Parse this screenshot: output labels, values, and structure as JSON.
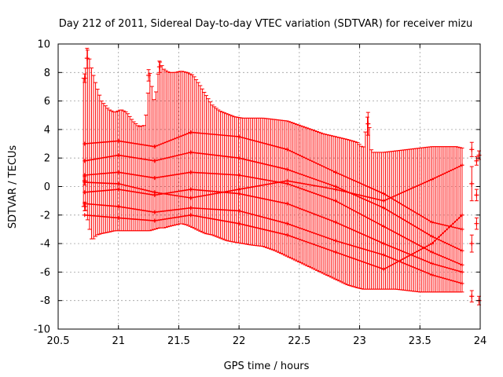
{
  "chart_data": {
    "type": "scatter",
    "title": "Day 212 of 2011, Sidereal Day-to-day VTEC variation (SDTVAR) for receiver mizu",
    "xlabel": "GPS time / hours",
    "ylabel": "SDTVAR / TECUs",
    "xlim": [
      20.5,
      24
    ],
    "ylim": [
      -10,
      10
    ],
    "xticks": [
      "20.5",
      "21",
      "21.5",
      "22",
      "22.5",
      "23",
      "23.5",
      "24"
    ],
    "yticks": [
      "-10",
      "-8",
      "-6",
      "-4",
      "-2",
      "0",
      "2",
      "4",
      "6",
      "8",
      "10"
    ],
    "grid": true,
    "series_color": "#ff0000",
    "envelope_upper": [
      [
        20.72,
        7.6
      ],
      [
        20.74,
        9.7
      ],
      [
        20.78,
        8.2
      ],
      [
        20.82,
        7.0
      ],
      [
        20.86,
        6.0
      ],
      [
        20.92,
        5.4
      ],
      [
        20.97,
        5.2
      ],
      [
        21.02,
        5.4
      ],
      [
        21.07,
        5.2
      ],
      [
        21.12,
        4.6
      ],
      [
        21.17,
        4.2
      ],
      [
        21.22,
        4.3
      ],
      [
        21.26,
        8.0
      ],
      [
        21.3,
        5.8
      ],
      [
        21.34,
        8.8
      ],
      [
        21.38,
        8.2
      ],
      [
        21.42,
        8.0
      ],
      [
        21.47,
        8.0
      ],
      [
        21.52,
        8.1
      ],
      [
        21.57,
        8.0
      ],
      [
        21.62,
        7.8
      ],
      [
        21.67,
        7.2
      ],
      [
        21.72,
        6.5
      ],
      [
        21.78,
        5.7
      ],
      [
        21.84,
        5.3
      ],
      [
        21.9,
        5.1
      ],
      [
        21.96,
        4.9
      ],
      [
        22.03,
        4.8
      ],
      [
        22.1,
        4.8
      ],
      [
        22.2,
        4.8
      ],
      [
        22.3,
        4.7
      ],
      [
        22.4,
        4.6
      ],
      [
        22.5,
        4.3
      ],
      [
        22.6,
        4.0
      ],
      [
        22.7,
        3.7
      ],
      [
        22.8,
        3.5
      ],
      [
        22.9,
        3.3
      ],
      [
        22.98,
        3.1
      ],
      [
        23.03,
        2.7
      ],
      [
        23.07,
        5.2
      ],
      [
        23.1,
        2.4
      ],
      [
        23.2,
        2.4
      ],
      [
        23.3,
        2.5
      ],
      [
        23.4,
        2.6
      ],
      [
        23.5,
        2.7
      ],
      [
        23.6,
        2.8
      ],
      [
        23.7,
        2.8
      ],
      [
        23.8,
        2.8
      ],
      [
        23.85,
        2.7
      ]
    ],
    "envelope_lower": [
      [
        20.72,
        -1.4
      ],
      [
        20.74,
        -2.2
      ],
      [
        20.78,
        -3.8
      ],
      [
        20.82,
        -3.4
      ],
      [
        20.86,
        -3.3
      ],
      [
        20.92,
        -3.2
      ],
      [
        20.97,
        -3.1
      ],
      [
        21.02,
        -3.1
      ],
      [
        21.07,
        -3.1
      ],
      [
        21.12,
        -3.1
      ],
      [
        21.17,
        -3.1
      ],
      [
        21.22,
        -3.1
      ],
      [
        21.26,
        -3.1
      ],
      [
        21.3,
        -3.0
      ],
      [
        21.34,
        -2.9
      ],
      [
        21.38,
        -2.9
      ],
      [
        21.42,
        -2.8
      ],
      [
        21.47,
        -2.7
      ],
      [
        21.52,
        -2.6
      ],
      [
        21.57,
        -2.7
      ],
      [
        21.62,
        -2.9
      ],
      [
        21.67,
        -3.1
      ],
      [
        21.72,
        -3.3
      ],
      [
        21.78,
        -3.4
      ],
      [
        21.84,
        -3.6
      ],
      [
        21.9,
        -3.8
      ],
      [
        21.96,
        -3.9
      ],
      [
        22.03,
        -4.0
      ],
      [
        22.1,
        -4.1
      ],
      [
        22.2,
        -4.2
      ],
      [
        22.3,
        -4.5
      ],
      [
        22.4,
        -4.9
      ],
      [
        22.5,
        -5.3
      ],
      [
        22.6,
        -5.7
      ],
      [
        22.7,
        -6.1
      ],
      [
        22.8,
        -6.5
      ],
      [
        22.9,
        -6.9
      ],
      [
        22.98,
        -7.1
      ],
      [
        23.03,
        -7.2
      ],
      [
        23.07,
        -7.2
      ],
      [
        23.1,
        -7.2
      ],
      [
        23.2,
        -7.2
      ],
      [
        23.3,
        -7.2
      ],
      [
        23.4,
        -7.3
      ],
      [
        23.5,
        -7.4
      ],
      [
        23.6,
        -7.4
      ],
      [
        23.7,
        -7.4
      ],
      [
        23.8,
        -7.4
      ],
      [
        23.85,
        -7.4
      ]
    ],
    "bar_x_start": 20.71,
    "bar_x_end": 23.85,
    "bar_x_step": 0.0167,
    "tracks": [
      [
        [
          20.72,
          3.0
        ],
        [
          21.0,
          3.2
        ],
        [
          21.3,
          2.8
        ],
        [
          21.6,
          3.8
        ],
        [
          22.0,
          3.5
        ],
        [
          22.4,
          2.6
        ],
        [
          22.8,
          1.0
        ],
        [
          23.2,
          -0.5
        ],
        [
          23.6,
          -2.5
        ],
        [
          23.85,
          -3.0
        ]
      ],
      [
        [
          20.72,
          1.8
        ],
        [
          21.0,
          2.2
        ],
        [
          21.3,
          1.8
        ],
        [
          21.6,
          2.4
        ],
        [
          22.0,
          2.0
        ],
        [
          22.4,
          1.2
        ],
        [
          22.8,
          0.0
        ],
        [
          23.2,
          -1.5
        ],
        [
          23.6,
          -3.5
        ],
        [
          23.85,
          -4.5
        ]
      ],
      [
        [
          20.72,
          0.8
        ],
        [
          21.0,
          1.0
        ],
        [
          21.3,
          0.6
        ],
        [
          21.6,
          1.0
        ],
        [
          22.0,
          0.8
        ],
        [
          22.4,
          0.2
        ],
        [
          22.8,
          -1.0
        ],
        [
          23.2,
          -2.8
        ],
        [
          23.6,
          -4.6
        ],
        [
          23.85,
          -5.5
        ]
      ],
      [
        [
          20.72,
          -0.4
        ],
        [
          21.0,
          -0.2
        ],
        [
          21.3,
          -0.6
        ],
        [
          21.6,
          -0.2
        ],
        [
          22.0,
          -0.5
        ],
        [
          22.4,
          -1.2
        ],
        [
          22.8,
          -2.5
        ],
        [
          23.2,
          -4.0
        ],
        [
          23.6,
          -5.4
        ],
        [
          23.85,
          -6.0
        ]
      ],
      [
        [
          20.72,
          -1.2
        ],
        [
          21.0,
          -1.4
        ],
        [
          21.3,
          -1.8
        ],
        [
          21.6,
          -1.5
        ],
        [
          22.0,
          -1.7
        ],
        [
          22.4,
          -2.6
        ],
        [
          22.8,
          -3.8
        ],
        [
          23.2,
          -4.8
        ],
        [
          23.6,
          -6.2
        ],
        [
          23.85,
          -6.8
        ]
      ],
      [
        [
          20.72,
          -2.0
        ],
        [
          21.0,
          -2.2
        ],
        [
          21.3,
          -2.4
        ],
        [
          21.6,
          -2.0
        ],
        [
          22.0,
          -2.6
        ],
        [
          22.4,
          -3.4
        ],
        [
          22.8,
          -4.6
        ],
        [
          23.2,
          -5.8
        ],
        [
          23.6,
          -4.0
        ],
        [
          23.85,
          -2.0
        ]
      ],
      [
        [
          20.72,
          0.3
        ],
        [
          21.0,
          0.2
        ],
        [
          21.3,
          -0.4
        ],
        [
          21.6,
          -0.8
        ],
        [
          22.0,
          -0.2
        ],
        [
          22.4,
          0.4
        ],
        [
          22.8,
          -0.2
        ],
        [
          23.2,
          -1.0
        ],
        [
          23.6,
          0.5
        ],
        [
          23.85,
          1.5
        ]
      ]
    ],
    "spikes": [
      {
        "x": 20.74,
        "y": 9.0,
        "err": 0.7
      },
      {
        "x": 21.25,
        "y": 7.8,
        "err": 0.4
      },
      {
        "x": 21.34,
        "y": 8.4,
        "err": 0.4
      },
      {
        "x": 23.07,
        "y": 4.4,
        "err": 0.8
      }
    ],
    "outliers": [
      {
        "x": 20.72,
        "y": 7.6,
        "err": 0.3
      },
      {
        "x": 20.72,
        "y": 0.4,
        "err": 0.3
      },
      {
        "x": 20.72,
        "y": -1.4,
        "err": 0.3
      },
      {
        "x": 23.93,
        "y": 2.6,
        "err": 0.5
      },
      {
        "x": 23.93,
        "y": 0.2,
        "err": 1.2
      },
      {
        "x": 23.93,
        "y": -4.0,
        "err": 0.6
      },
      {
        "x": 23.93,
        "y": -7.7,
        "err": 0.4
      },
      {
        "x": 23.97,
        "y": 1.8,
        "err": 0.3
      },
      {
        "x": 23.97,
        "y": -0.6,
        "err": 0.4
      },
      {
        "x": 23.97,
        "y": -2.6,
        "err": 0.4
      },
      {
        "x": 23.99,
        "y": -8.0,
        "err": 0.3
      },
      {
        "x": 23.99,
        "y": 2.2,
        "err": 0.3
      }
    ]
  }
}
